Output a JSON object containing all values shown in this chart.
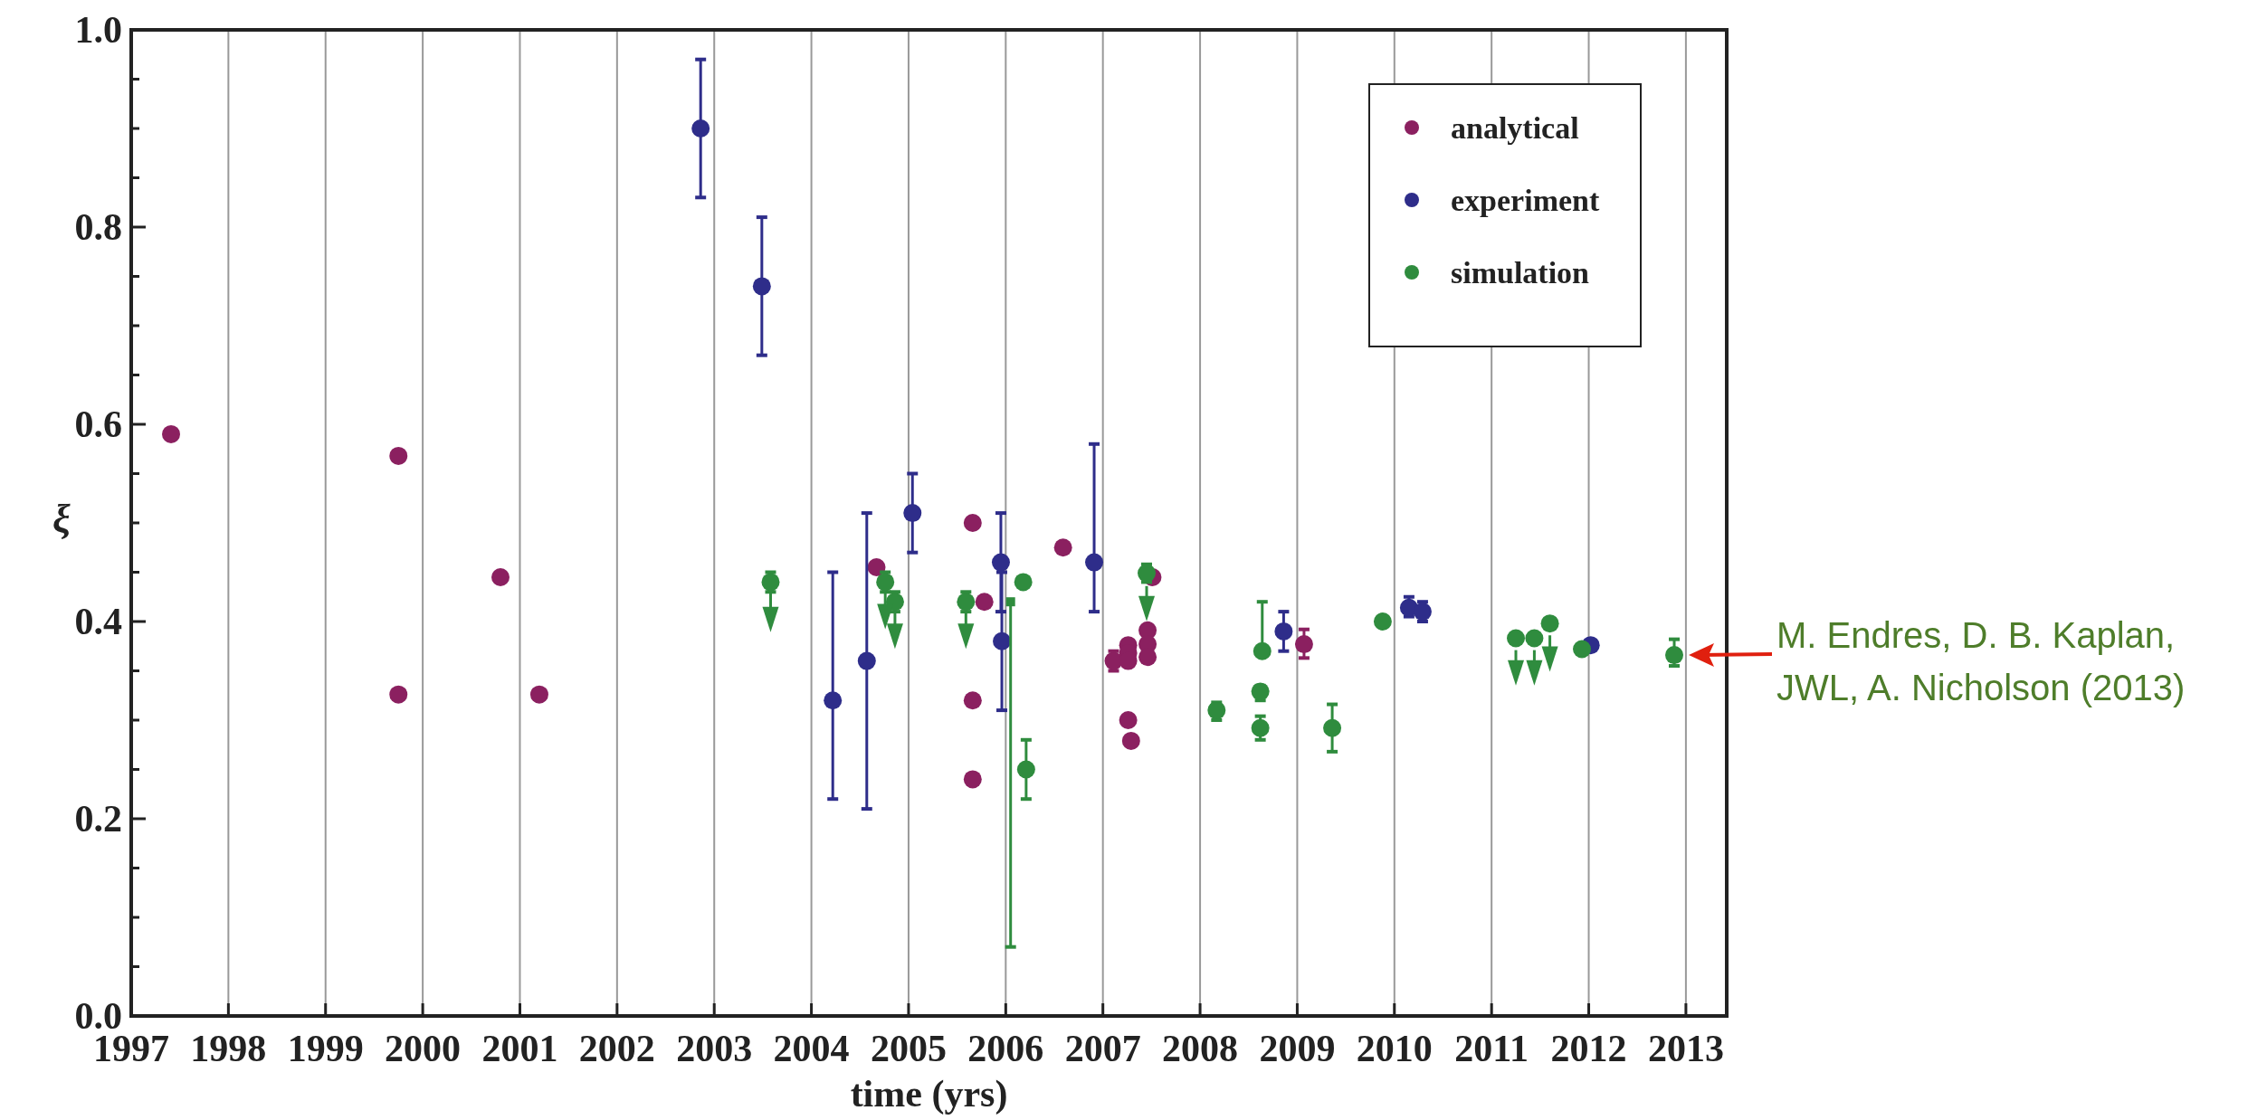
{
  "chart_data": {
    "type": "scatter",
    "xlabel": "time (yrs)",
    "ylabel": "ξ",
    "xlim": [
      1997,
      2013.42
    ],
    "ylim": [
      0,
      1
    ],
    "xticks": [
      1997,
      1998,
      1999,
      2000,
      2001,
      2002,
      2003,
      2004,
      2005,
      2006,
      2007,
      2008,
      2009,
      2010,
      2011,
      2012,
      2013
    ],
    "yticks": [
      {
        "value": 0,
        "label": "0.0"
      },
      {
        "value": 0.05,
        "label": null
      },
      {
        "value": 0.1,
        "label": null
      },
      {
        "value": 0.15,
        "label": null
      },
      {
        "value": 0.2,
        "label": "0.2"
      },
      {
        "value": 0.25,
        "label": null
      },
      {
        "value": 0.3,
        "label": null
      },
      {
        "value": 0.35,
        "label": null
      },
      {
        "value": 0.4,
        "label": "0.4"
      },
      {
        "value": 0.45,
        "label": null
      },
      {
        "value": 0.5,
        "label": null
      },
      {
        "value": 0.55,
        "label": null
      },
      {
        "value": 0.6,
        "label": "0.6"
      },
      {
        "value": 0.65,
        "label": null
      },
      {
        "value": 0.7,
        "label": null
      },
      {
        "value": 0.75,
        "label": null
      },
      {
        "value": 0.8,
        "label": "0.8"
      },
      {
        "value": 0.85,
        "label": null
      },
      {
        "value": 0.9,
        "label": null
      },
      {
        "value": 0.95,
        "label": null
      },
      {
        "value": 1,
        "label": "1.0"
      }
    ],
    "grid": "x",
    "legend": "top right",
    "marker": "circle",
    "series": [
      {
        "name": "analytical",
        "color": "#8b2060",
        "x": [
          1997.41,
          1999.75,
          1999.75,
          2000.8,
          2001.2,
          2004.67,
          2005.66,
          2005.78,
          2005.66,
          2005.66,
          2006.59,
          2007.11,
          2007.26,
          2007.26,
          2007.26,
          2007.26,
          2007.29,
          2007.46,
          2007.46,
          2007.46,
          2007.51,
          2009.07
        ],
        "values": [
          0.59,
          0.568,
          0.326,
          0.445,
          0.326,
          0.455,
          0.5,
          0.42,
          0.32,
          0.24,
          0.475,
          0.36,
          0.376,
          0.368,
          0.36,
          0.3,
          0.279,
          0.391,
          0.377,
          0.364,
          0.445,
          0.377
        ],
        "errors": [
          null,
          null,
          null,
          null,
          null,
          null,
          null,
          null,
          null,
          null,
          null,
          [
            0.35,
            0.37
          ],
          null,
          null,
          null,
          null,
          null,
          null,
          null,
          null,
          null,
          [
            0.363,
            0.392
          ]
        ]
      },
      {
        "name": "experiment",
        "color": "#2e2d8a",
        "x": [
          2002.86,
          2003.49,
          2004.22,
          2004.57,
          2005.04,
          2005.95,
          2005.96,
          2006.91,
          2008.86,
          2010.15,
          2010.29,
          2012.02
        ],
        "values": [
          0.9,
          0.74,
          0.32,
          0.36,
          0.51,
          0.46,
          0.38,
          0.46,
          0.39,
          0.414,
          0.41,
          0.376
        ],
        "errors": [
          [
            0.83,
            0.97
          ],
          [
            0.67,
            0.81
          ],
          [
            0.22,
            0.45
          ],
          [
            0.21,
            0.51
          ],
          [
            0.47,
            0.55
          ],
          [
            0.41,
            0.51
          ],
          [
            0.31,
            0.45
          ],
          [
            0.41,
            0.58
          ],
          [
            0.37,
            0.41
          ],
          [
            0.405,
            0.425
          ],
          [
            0.4,
            0.42
          ],
          null
        ]
      },
      {
        "name": "simulation",
        "color": "#2f8c3e",
        "x": [
          2003.58,
          2004.76,
          2004.86,
          2005.59,
          2006.18,
          2006.21,
          2007.45,
          2008.17,
          2008.64,
          2008.62,
          2008.62,
          2009.36,
          2009.88,
          2011.25,
          2011.44,
          2011.6,
          2011.93,
          2012.88
        ],
        "values": [
          0.44,
          0.44,
          0.42,
          0.42,
          0.44,
          0.25,
          0.449,
          0.31,
          0.37,
          0.329,
          0.292,
          0.292,
          0.4,
          0.383,
          0.383,
          0.398,
          0.372,
          0.366
        ],
        "errors": [
          [
            0.43,
            0.45
          ],
          [
            0.43,
            0.45
          ],
          [
            0.41,
            0.43
          ],
          [
            0.41,
            0.43
          ],
          null,
          [
            0.22,
            0.28
          ],
          [
            0.44,
            0.458
          ],
          [
            0.3,
            0.318
          ],
          [
            0.37,
            0.42
          ],
          [
            0.32,
            0.335
          ],
          [
            0.28,
            0.304
          ],
          [
            0.268,
            0.316
          ],
          null,
          null,
          null,
          null,
          null,
          [
            0.355,
            0.382
          ]
        ]
      },
      {
        "color": "#2f8c3e",
        "marker": "square",
        "x": [
          2006.05
        ],
        "values": [
          0.42
        ],
        "errors": [
          [
            0.07,
            0.42
          ]
        ]
      },
      {
        "color": "#2f8c3e",
        "marker": "triangle",
        "x": [
          2003.58,
          2004.76,
          2004.86,
          2005.59,
          2007.45,
          2011.25,
          2011.44,
          2011.6
        ],
        "values": [
          0.402,
          0.405,
          0.385,
          0.385,
          0.413,
          0.348,
          0.348,
          0.362
        ],
        "errors": [
          [
            0.402,
            0.43
          ],
          [
            0.405,
            0.43
          ],
          [
            0.385,
            0.41
          ],
          [
            0.385,
            0.41
          ],
          [
            0.413,
            0.436
          ],
          [
            0.348,
            0.371
          ],
          [
            0.348,
            0.371
          ],
          [
            0.362,
            0.386
          ]
        ]
      }
    ],
    "annotations": [
      {
        "text": "M. Endres, D. B. Kaplan,\nJWL, A. Nicholson (2013)",
        "x": 2012.88,
        "y": 0.366
      }
    ]
  }
}
